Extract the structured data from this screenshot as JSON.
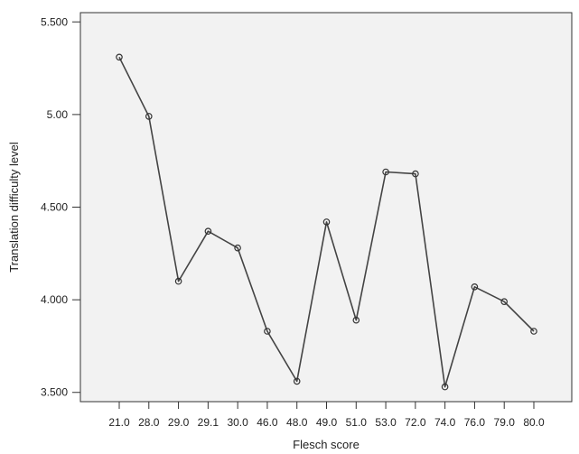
{
  "chart_data": {
    "type": "line",
    "title": "",
    "xlabel": "Flesch score",
    "ylabel": "Translation difficulty level",
    "categories": [
      "21.0",
      "28.0",
      "29.0",
      "29.1",
      "30.0",
      "46.0",
      "48.0",
      "49.0",
      "51.0",
      "53.0",
      "72.0",
      "74.0",
      "76.0",
      "79.0",
      "80.0"
    ],
    "values": [
      5.31,
      4.99,
      4.1,
      4.37,
      4.28,
      3.83,
      3.56,
      4.42,
      3.89,
      4.69,
      4.68,
      3.53,
      4.07,
      3.99,
      3.83
    ],
    "yticks": [
      3.5,
      4.0,
      4.5,
      5.0,
      5.5
    ],
    "ytick_labels": [
      "3.500",
      "4.000",
      "4.500",
      "5.00",
      "5.500"
    ],
    "ylim": [
      3.45,
      5.55
    ],
    "grid": false,
    "colors": {
      "plot_background": "#f2f2f2",
      "line": "#444444",
      "marker_edge": "#333333",
      "axis": "#333333"
    }
  }
}
